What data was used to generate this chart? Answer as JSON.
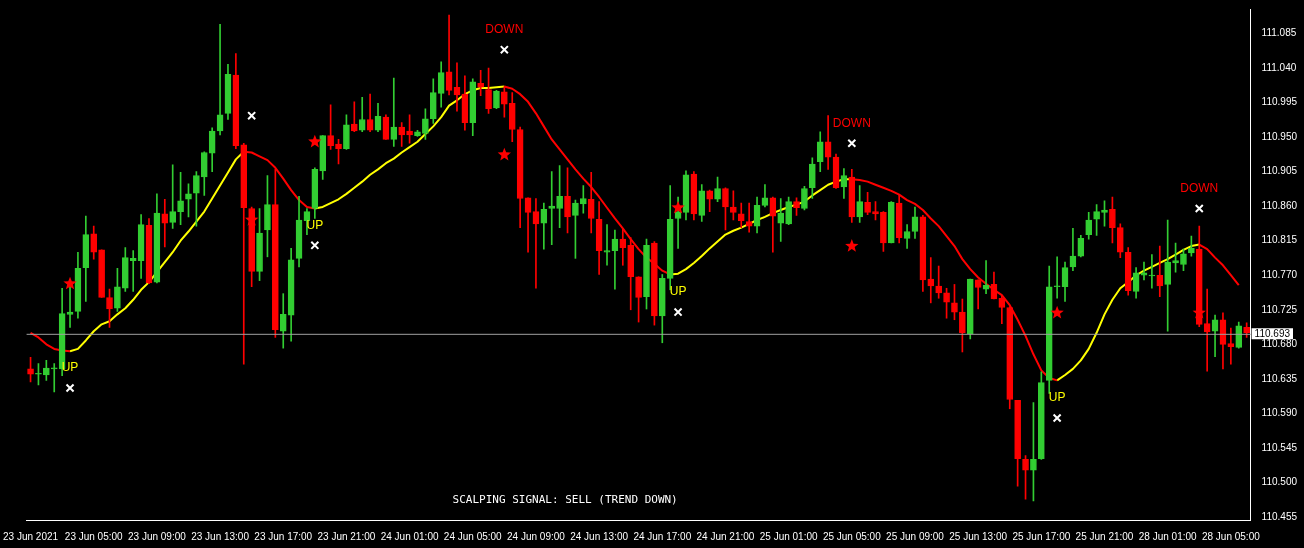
{
  "chart_data": {
    "type": "candlestick",
    "categories": [
      "23 Jun 2021",
      null,
      null,
      null,
      null,
      null,
      null,
      null,
      "23 Jun 05:00",
      null,
      null,
      null,
      null,
      null,
      null,
      null,
      "23 Jun 09:00",
      null,
      null,
      null,
      null,
      null,
      null,
      null,
      "23 Jun 13:00",
      null,
      null,
      null,
      null,
      null,
      null,
      null,
      "23 Jun 17:00",
      null,
      null,
      null,
      null,
      null,
      null,
      null,
      "23 Jun 21:00",
      null,
      null,
      null,
      null,
      null,
      null,
      null,
      "24 Jun 01:00",
      null,
      null,
      null,
      null,
      null,
      null,
      null,
      "24 Jun 05:00",
      null,
      null,
      null,
      null,
      null,
      null,
      null,
      "24 Jun 09:00",
      null,
      null,
      null,
      null,
      null,
      null,
      null,
      "24 Jun 13:00",
      null,
      null,
      null,
      null,
      null,
      null,
      null,
      "24 Jun 17:00",
      null,
      null,
      null,
      null,
      null,
      null,
      null,
      "24 Jun 21:00",
      null,
      null,
      null,
      null,
      null,
      null,
      null,
      "25 Jun 01:00",
      null,
      null,
      null,
      null,
      null,
      null,
      null,
      "25 Jun 05:00",
      null,
      null,
      null,
      null,
      null,
      null,
      null,
      "25 Jun 09:00",
      null,
      null,
      null,
      null,
      null,
      null,
      null,
      "25 Jun 13:00",
      null,
      null,
      null,
      null,
      null,
      null,
      null,
      "25 Jun 17:00",
      null,
      null,
      null,
      null,
      null,
      null,
      null,
      "25 Jun 21:00",
      null,
      null,
      null,
      null,
      null,
      null,
      null,
      "28 Jun 01:00",
      null,
      null,
      null,
      null,
      null,
      null,
      null,
      "28 Jun 05:00",
      null,
      null
    ],
    "ohlc": [
      [
        110.648,
        110.663,
        110.631,
        110.641
      ],
      [
        110.641,
        110.655,
        110.627,
        110.642
      ],
      [
        110.64,
        110.659,
        110.633,
        110.649
      ],
      [
        110.648,
        110.655,
        110.618,
        110.649
      ],
      [
        110.648,
        110.753,
        110.639,
        110.72
      ],
      [
        110.719,
        110.755,
        110.702,
        110.722
      ],
      [
        110.723,
        110.8,
        110.714,
        110.779
      ],
      [
        110.78,
        110.847,
        110.736,
        110.823
      ],
      [
        110.824,
        110.834,
        110.791,
        110.8
      ],
      [
        110.803,
        110.803,
        110.741,
        110.741
      ],
      [
        110.741,
        110.752,
        110.702,
        110.726
      ],
      [
        110.727,
        110.779,
        110.723,
        110.755
      ],
      [
        110.753,
        110.806,
        110.749,
        110.793
      ],
      [
        110.789,
        110.802,
        110.749,
        110.792
      ],
      [
        110.789,
        110.849,
        110.766,
        110.836
      ],
      [
        110.835,
        110.844,
        110.759,
        110.76
      ],
      [
        110.761,
        110.876,
        110.76,
        110.851
      ],
      [
        110.85,
        110.869,
        110.807,
        110.838
      ],
      [
        110.839,
        110.914,
        110.831,
        110.853
      ],
      [
        110.853,
        110.904,
        110.836,
        110.867
      ],
      [
        110.869,
        110.889,
        110.846,
        110.876
      ],
      [
        110.877,
        110.905,
        110.834,
        110.9
      ],
      [
        110.898,
        110.931,
        110.874,
        110.93
      ],
      [
        110.929,
        110.962,
        110.905,
        110.958
      ],
      [
        110.958,
        111.097,
        110.953,
        110.979
      ],
      [
        110.981,
        111.045,
        110.973,
        111.032
      ],
      [
        111.031,
        111.059,
        110.935,
        110.939
      ],
      [
        110.94,
        110.942,
        110.654,
        110.858
      ],
      [
        110.857,
        110.859,
        110.755,
        110.775
      ],
      [
        110.775,
        110.857,
        110.763,
        110.825
      ],
      [
        110.829,
        110.9,
        110.794,
        110.862
      ],
      [
        110.862,
        110.908,
        110.689,
        110.699
      ],
      [
        110.697,
        110.746,
        110.675,
        110.719
      ],
      [
        110.718,
        110.805,
        110.684,
        110.79
      ],
      [
        110.792,
        110.873,
        110.781,
        110.842
      ],
      [
        110.841,
        110.857,
        110.823,
        110.853
      ],
      [
        110.857,
        110.91,
        110.844,
        110.908
      ],
      [
        110.906,
        110.952,
        110.895,
        110.952
      ],
      [
        110.952,
        110.992,
        110.934,
        110.939
      ],
      [
        110.941,
        110.947,
        110.915,
        110.935
      ],
      [
        110.935,
        110.979,
        110.934,
        110.966
      ],
      [
        110.967,
        110.996,
        110.957,
        110.958
      ],
      [
        110.959,
        111.002,
        110.957,
        110.973
      ],
      [
        110.973,
        111.006,
        110.957,
        110.959
      ],
      [
        110.959,
        110.994,
        110.957,
        110.977
      ],
      [
        110.976,
        110.979,
        110.947,
        110.947
      ],
      [
        110.947,
        111.027,
        110.938,
        110.963
      ],
      [
        110.963,
        110.969,
        110.938,
        110.953
      ],
      [
        110.958,
        110.979,
        110.942,
        110.953
      ],
      [
        110.952,
        110.959,
        110.951,
        110.957
      ],
      [
        110.955,
        110.987,
        110.947,
        110.974
      ],
      [
        110.974,
        111.026,
        110.968,
        111.008
      ],
      [
        111.007,
        111.048,
        110.989,
        111.034
      ],
      [
        111.035,
        111.109,
        111.005,
        111.011
      ],
      [
        111.015,
        111.047,
        110.984,
        111.005
      ],
      [
        111.006,
        111.03,
        110.959,
        110.969
      ],
      [
        110.969,
        111.026,
        110.952,
        111.022
      ],
      [
        111.02,
        111.037,
        111.004,
        111.015
      ],
      [
        111.012,
        111.04,
        110.981,
        110.987
      ],
      [
        110.988,
        111.011,
        110.987,
        111.01
      ],
      [
        111.009,
        111.016,
        110.976,
        110.993
      ],
      [
        110.994,
        111.008,
        110.944,
        110.96
      ],
      [
        110.96,
        110.963,
        110.832,
        110.87
      ],
      [
        110.871,
        110.871,
        110.8,
        110.852
      ],
      [
        110.853,
        110.87,
        110.753,
        110.837
      ],
      [
        110.838,
        110.864,
        110.804,
        110.856
      ],
      [
        110.857,
        110.905,
        110.81,
        110.86
      ],
      [
        110.857,
        110.913,
        110.832,
        110.873
      ],
      [
        110.873,
        110.91,
        110.825,
        110.846
      ],
      [
        110.848,
        110.868,
        110.792,
        110.864
      ],
      [
        110.863,
        110.887,
        110.851,
        110.87
      ],
      [
        110.869,
        110.904,
        110.825,
        110.844
      ],
      [
        110.843,
        110.866,
        110.771,
        110.802
      ],
      [
        110.8,
        110.836,
        110.783,
        110.802
      ],
      [
        110.802,
        110.829,
        110.752,
        110.817
      ],
      [
        110.817,
        110.831,
        110.783,
        110.806
      ],
      [
        110.809,
        110.819,
        110.725,
        110.768
      ],
      [
        110.768,
        110.768,
        110.709,
        110.741
      ],
      [
        110.742,
        110.817,
        110.726,
        110.809
      ],
      [
        110.812,
        110.814,
        110.705,
        110.717
      ],
      [
        110.717,
        110.771,
        110.682,
        110.766
      ],
      [
        110.766,
        110.887,
        110.751,
        110.843
      ],
      [
        110.844,
        110.872,
        110.805,
        110.852
      ],
      [
        110.852,
        110.906,
        110.842,
        110.901
      ],
      [
        110.902,
        110.905,
        110.842,
        110.85
      ],
      [
        110.848,
        110.888,
        110.84,
        110.88
      ],
      [
        110.88,
        110.881,
        110.853,
        110.869
      ],
      [
        110.869,
        110.898,
        110.866,
        110.883
      ],
      [
        110.883,
        110.884,
        110.829,
        110.859
      ],
      [
        110.859,
        110.88,
        110.842,
        110.852
      ],
      [
        110.85,
        110.864,
        110.832,
        110.841
      ],
      [
        110.84,
        110.864,
        110.826,
        110.834
      ],
      [
        110.834,
        110.872,
        110.825,
        110.861
      ],
      [
        110.861,
        110.888,
        110.859,
        110.871
      ],
      [
        110.871,
        110.872,
        110.8,
        110.847
      ],
      [
        110.838,
        110.87,
        110.814,
        110.851
      ],
      [
        110.837,
        110.872,
        110.836,
        110.866
      ],
      [
        110.866,
        110.871,
        110.848,
        110.858
      ],
      [
        110.857,
        110.886,
        110.855,
        110.883
      ],
      [
        110.884,
        110.923,
        110.87,
        110.915
      ],
      [
        110.918,
        110.957,
        110.905,
        110.944
      ],
      [
        110.944,
        110.978,
        110.908,
        110.924
      ],
      [
        110.924,
        110.928,
        110.883,
        110.884
      ],
      [
        110.885,
        110.909,
        110.87,
        110.9
      ],
      [
        110.898,
        110.908,
        110.839,
        110.846
      ],
      [
        110.846,
        110.887,
        110.839,
        110.866
      ],
      [
        110.865,
        110.878,
        110.849,
        110.852
      ],
      [
        110.853,
        110.866,
        110.842,
        110.85
      ],
      [
        110.852,
        110.853,
        110.801,
        110.812
      ],
      [
        110.812,
        110.866,
        110.812,
        110.865
      ],
      [
        110.864,
        110.875,
        110.812,
        110.819
      ],
      [
        110.818,
        110.836,
        110.805,
        110.827
      ],
      [
        110.827,
        110.859,
        110.818,
        110.846
      ],
      [
        110.846,
        110.848,
        110.749,
        110.764
      ],
      [
        110.765,
        110.793,
        110.734,
        110.756
      ],
      [
        110.756,
        110.782,
        110.74,
        110.747
      ],
      [
        110.747,
        110.753,
        110.714,
        110.735
      ],
      [
        110.734,
        110.758,
        110.712,
        110.722
      ],
      [
        110.722,
        110.739,
        110.67,
        110.695
      ],
      [
        110.694,
        110.765,
        110.687,
        110.765
      ],
      [
        110.764,
        110.764,
        110.726,
        110.754
      ],
      [
        110.752,
        110.789,
        110.746,
        110.757
      ],
      [
        110.758,
        110.774,
        110.739,
        110.739
      ],
      [
        110.74,
        110.743,
        110.707,
        110.728
      ],
      [
        110.728,
        110.729,
        110.596,
        110.608
      ],
      [
        110.607,
        110.607,
        110.495,
        110.531
      ],
      [
        110.53,
        110.535,
        110.478,
        110.516
      ],
      [
        110.516,
        110.604,
        110.476,
        110.53
      ],
      [
        110.531,
        110.644,
        110.53,
        110.63
      ],
      [
        110.633,
        110.782,
        110.616,
        110.755
      ],
      [
        110.755,
        110.794,
        110.74,
        110.756
      ],
      [
        110.755,
        110.787,
        110.736,
        110.78
      ],
      [
        110.781,
        110.831,
        110.776,
        110.795
      ],
      [
        110.795,
        110.822,
        110.794,
        110.818
      ],
      [
        110.823,
        110.852,
        110.817,
        110.842
      ],
      [
        110.843,
        110.862,
        110.822,
        110.853
      ],
      [
        110.852,
        110.867,
        110.834,
        110.855
      ],
      [
        110.856,
        110.872,
        110.812,
        110.832
      ],
      [
        110.832,
        110.837,
        110.793,
        110.8
      ],
      [
        110.8,
        110.806,
        110.744,
        110.75
      ],
      [
        110.749,
        110.78,
        110.74,
        110.773
      ],
      [
        110.77,
        110.787,
        110.764,
        110.773
      ],
      [
        110.769,
        110.797,
        110.753,
        110.77
      ],
      [
        110.77,
        110.808,
        110.742,
        110.756
      ],
      [
        110.758,
        110.842,
        110.697,
        110.787
      ],
      [
        110.786,
        110.812,
        110.774,
        110.789
      ],
      [
        110.784,
        110.804,
        110.776,
        110.798
      ],
      [
        110.799,
        110.821,
        110.795,
        110.805
      ],
      [
        110.804,
        110.834,
        110.703,
        110.706
      ],
      [
        110.707,
        110.752,
        110.645,
        110.696
      ],
      [
        110.697,
        110.718,
        110.664,
        110.712
      ],
      [
        110.712,
        110.721,
        110.648,
        110.68
      ],
      [
        110.681,
        110.701,
        110.654,
        110.677
      ],
      [
        110.676,
        110.709,
        110.675,
        110.704
      ],
      [
        110.702,
        110.708,
        110.689,
        110.695
      ]
    ],
    "colors": [
      "#ff0000",
      "#32cd32",
      "#32cd32",
      "#32cd32",
      "#32cd32",
      "#32cd32",
      "#32cd32",
      "#32cd32",
      "#ff0000",
      "#ff0000",
      "#ff0000",
      "#32cd32",
      "#32cd32",
      "#32cd32",
      "#32cd32",
      "#ff0000",
      "#32cd32",
      "#ff0000",
      "#32cd32",
      "#32cd32",
      "#32cd32",
      "#32cd32",
      "#32cd32",
      "#32cd32",
      "#32cd32",
      "#32cd32",
      "#ff0000",
      "#ff0000",
      "#ff0000",
      "#32cd32",
      "#32cd32",
      "#ff0000",
      "#32cd32",
      "#32cd32",
      "#32cd32",
      "#32cd32",
      "#32cd32",
      "#32cd32",
      "#ff0000",
      "#ff0000",
      "#32cd32",
      "#ff0000",
      "#32cd32",
      "#ff0000",
      "#32cd32",
      "#ff0000",
      "#32cd32",
      "#ff0000",
      "#ff0000",
      "#32cd32",
      "#32cd32",
      "#32cd32",
      "#32cd32",
      "#ff0000",
      "#ff0000",
      "#ff0000",
      "#32cd32",
      "#ff0000",
      "#ff0000",
      "#32cd32",
      "#ff0000",
      "#ff0000",
      "#ff0000",
      "#ff0000",
      "#ff0000",
      "#32cd32",
      "#32cd32",
      "#32cd32",
      "#ff0000",
      "#32cd32",
      "#32cd32",
      "#ff0000",
      "#ff0000",
      "#32cd32",
      "#32cd32",
      "#ff0000",
      "#ff0000",
      "#ff0000",
      "#32cd32",
      "#ff0000",
      "#32cd32",
      "#32cd32",
      "#32cd32",
      "#32cd32",
      "#ff0000",
      "#32cd32",
      "#ff0000",
      "#32cd32",
      "#ff0000",
      "#ff0000",
      "#ff0000",
      "#ff0000",
      "#32cd32",
      "#32cd32",
      "#ff0000",
      "#32cd32",
      "#32cd32",
      "#ff0000",
      "#32cd32",
      "#32cd32",
      "#32cd32",
      "#ff0000",
      "#ff0000",
      "#32cd32",
      "#ff0000",
      "#32cd32",
      "#ff0000",
      "#ff0000",
      "#ff0000",
      "#32cd32",
      "#ff0000",
      "#32cd32",
      "#32cd32",
      "#ff0000",
      "#ff0000",
      "#ff0000",
      "#ff0000",
      "#ff0000",
      "#ff0000",
      "#32cd32",
      "#ff0000",
      "#32cd32",
      "#ff0000",
      "#ff0000",
      "#ff0000",
      "#ff0000",
      "#ff0000",
      "#32cd32",
      "#32cd32",
      "#32cd32",
      "#32cd32",
      "#32cd32",
      "#32cd32",
      "#32cd32",
      "#32cd32",
      "#32cd32",
      "#32cd32",
      "#ff0000",
      "#ff0000",
      "#ff0000",
      "#32cd32",
      "#32cd32",
      "#32cd32",
      "#ff0000",
      "#32cd32",
      "#32cd32",
      "#32cd32",
      "#32cd32",
      "#ff0000",
      "#ff0000",
      "#32cd32",
      "#ff0000",
      "#ff0000",
      "#32cd32",
      "#ff0000"
    ],
    "series": [
      {
        "type": "line",
        "color": "#ff0000",
        "values": [
          110.695,
          110.689,
          110.68,
          110.674,
          110.672,
          110.671,
          null,
          null,
          null,
          null,
          null,
          null,
          null,
          null,
          null,
          null,
          null,
          null,
          null,
          null,
          null,
          null,
          null,
          null,
          null,
          null,
          null,
          110.931,
          110.93,
          110.925,
          110.92,
          110.91,
          110.896,
          110.881,
          110.868,
          110.859,
          110.857,
          null,
          null,
          null,
          null,
          null,
          null,
          null,
          null,
          null,
          null,
          null,
          null,
          null,
          null,
          null,
          null,
          null,
          null,
          null,
          null,
          null,
          null,
          null,
          111.016,
          111.013,
          111.006,
          110.996,
          110.981,
          110.964,
          110.947,
          110.934,
          110.921,
          110.908,
          110.896,
          110.885,
          110.872,
          110.858,
          110.844,
          110.831,
          110.817,
          110.804,
          110.793,
          110.785,
          110.776,
          110.771,
          null,
          null,
          null,
          null,
          null,
          null,
          null,
          null,
          null,
          null,
          null,
          null,
          null,
          null,
          null,
          null,
          null,
          null,
          null,
          null,
          null,
          null,
          110.895,
          110.894,
          110.892,
          110.888,
          110.884,
          110.88,
          110.875,
          110.868,
          110.863,
          110.855,
          110.844,
          110.834,
          110.821,
          110.808,
          110.791,
          110.778,
          110.767,
          110.759,
          110.751,
          110.744,
          110.731,
          110.712,
          110.691,
          110.667,
          110.646,
          110.636,
          110.633,
          null,
          null,
          null,
          null,
          null,
          null,
          null,
          null,
          null,
          null,
          null,
          null,
          null,
          null,
          null,
          null,
          null,
          110.81,
          110.804,
          110.793,
          110.783,
          110.77,
          110.757,
          null
        ]
      },
      {
        "type": "line",
        "color": "#ffff00",
        "values": [
          null,
          null,
          null,
          null,
          null,
          110.671,
          110.674,
          110.685,
          110.697,
          110.706,
          110.71,
          110.719,
          110.727,
          110.738,
          110.751,
          110.761,
          110.774,
          110.787,
          110.8,
          110.815,
          110.827,
          110.84,
          110.853,
          110.87,
          110.887,
          110.904,
          110.921,
          110.931,
          null,
          null,
          null,
          null,
          null,
          null,
          null,
          null,
          110.857,
          110.859,
          110.864,
          110.869,
          110.876,
          110.884,
          110.892,
          110.901,
          110.908,
          110.916,
          110.922,
          110.93,
          110.937,
          110.944,
          110.954,
          110.964,
          110.976,
          110.991,
          110.998,
          111.006,
          111.011,
          111.014,
          111.014,
          111.015,
          111.016,
          null,
          null,
          null,
          null,
          null,
          null,
          null,
          null,
          null,
          null,
          null,
          null,
          null,
          null,
          null,
          null,
          null,
          null,
          null,
          null,
          110.771,
          110.772,
          110.778,
          110.786,
          110.795,
          110.805,
          110.814,
          110.823,
          110.828,
          110.832,
          110.837,
          110.842,
          110.846,
          110.851,
          110.855,
          110.859,
          110.862,
          110.866,
          110.874,
          110.881,
          110.888,
          110.892,
          110.895,
          110.895,
          null,
          null,
          null,
          null,
          null,
          null,
          null,
          null,
          null,
          null,
          null,
          null,
          null,
          null,
          null,
          null,
          null,
          null,
          null,
          null,
          null,
          null,
          null,
          null,
          null,
          110.633,
          110.64,
          110.648,
          110.659,
          110.674,
          110.695,
          110.719,
          110.738,
          110.753,
          110.761,
          110.77,
          110.776,
          110.781,
          110.786,
          110.791,
          110.797,
          110.803,
          110.808,
          110.81,
          null,
          null,
          null,
          null,
          null,
          null
        ]
      },
      {
        "type": "scatter",
        "marker": "star",
        "color": "#ff0000",
        "values": [
          null,
          null,
          null,
          null,
          null,
          110.759,
          null,
          null,
          null,
          null,
          null,
          null,
          null,
          null,
          null,
          null,
          null,
          null,
          null,
          null,
          null,
          null,
          null,
          null,
          null,
          null,
          null,
          null,
          110.842,
          null,
          null,
          null,
          null,
          null,
          null,
          null,
          110.944,
          null,
          null,
          null,
          null,
          null,
          null,
          null,
          null,
          null,
          null,
          null,
          null,
          null,
          null,
          null,
          null,
          null,
          null,
          null,
          null,
          null,
          null,
          null,
          110.927,
          null,
          null,
          null,
          null,
          null,
          null,
          null,
          null,
          null,
          null,
          null,
          null,
          null,
          null,
          null,
          null,
          null,
          null,
          null,
          null,
          null,
          110.858,
          null,
          null,
          null,
          null,
          null,
          null,
          null,
          null,
          null,
          null,
          null,
          null,
          null,
          null,
          null,
          null,
          null,
          null,
          null,
          null,
          null,
          110.808,
          null,
          null,
          null,
          null,
          null,
          null,
          null,
          null,
          null,
          null,
          null,
          null,
          null,
          null,
          null,
          null,
          null,
          null,
          null,
          null,
          null,
          null,
          null,
          null,
          null,
          110.721,
          null,
          null,
          null,
          null,
          null,
          null,
          null,
          null,
          null,
          null,
          null,
          null,
          null,
          null,
          null,
          null,
          null,
          110.721,
          null,
          null,
          null,
          null,
          null,
          null
        ]
      },
      {
        "type": "scatter",
        "marker": "cross",
        "color": "#ffffff",
        "values": [
          null,
          null,
          null,
          null,
          null,
          110.623,
          null,
          null,
          null,
          null,
          null,
          null,
          null,
          null,
          null,
          null,
          null,
          null,
          null,
          null,
          null,
          null,
          null,
          null,
          null,
          null,
          null,
          null,
          110.978,
          null,
          null,
          null,
          null,
          null,
          null,
          null,
          110.809,
          null,
          null,
          null,
          null,
          null,
          null,
          null,
          null,
          null,
          null,
          null,
          null,
          null,
          null,
          null,
          null,
          null,
          null,
          null,
          null,
          null,
          null,
          null,
          111.064,
          null,
          null,
          null,
          null,
          null,
          null,
          null,
          null,
          null,
          null,
          null,
          null,
          null,
          null,
          null,
          null,
          null,
          null,
          null,
          null,
          null,
          110.722,
          null,
          null,
          null,
          null,
          null,
          null,
          null,
          null,
          null,
          null,
          null,
          null,
          null,
          null,
          null,
          null,
          null,
          null,
          null,
          null,
          null,
          110.942,
          null,
          null,
          null,
          null,
          null,
          null,
          null,
          null,
          null,
          null,
          null,
          null,
          null,
          null,
          null,
          null,
          null,
          null,
          null,
          null,
          null,
          null,
          null,
          null,
          null,
          110.584,
          null,
          null,
          null,
          null,
          null,
          null,
          null,
          null,
          null,
          null,
          null,
          null,
          null,
          null,
          null,
          null,
          null,
          110.857,
          null,
          null,
          null,
          null,
          null,
          null
        ],
        "value_labels": [
          null,
          null,
          null,
          null,
          null,
          "UP",
          null,
          null,
          null,
          null,
          null,
          null,
          null,
          null,
          null,
          null,
          null,
          null,
          null,
          null,
          null,
          null,
          null,
          null,
          null,
          null,
          null,
          null,
          null,
          null,
          null,
          null,
          null,
          null,
          null,
          null,
          "UP",
          null,
          null,
          null,
          null,
          null,
          null,
          null,
          null,
          null,
          null,
          null,
          null,
          null,
          null,
          null,
          null,
          null,
          null,
          null,
          null,
          null,
          null,
          null,
          "DOWN",
          null,
          null,
          null,
          null,
          null,
          null,
          null,
          null,
          null,
          null,
          null,
          null,
          null,
          null,
          null,
          null,
          null,
          null,
          null,
          null,
          null,
          "UP",
          null,
          null,
          null,
          null,
          null,
          null,
          null,
          null,
          null,
          null,
          null,
          null,
          null,
          null,
          null,
          null,
          null,
          null,
          null,
          null,
          null,
          "DOWN",
          null,
          null,
          null,
          null,
          null,
          null,
          null,
          null,
          null,
          null,
          null,
          null,
          null,
          null,
          null,
          null,
          null,
          null,
          null,
          null,
          null,
          null,
          null,
          null,
          null,
          "UP",
          null,
          null,
          null,
          null,
          null,
          null,
          null,
          null,
          null,
          null,
          null,
          null,
          null,
          null,
          null,
          null,
          null,
          "DOWN",
          null,
          null,
          null,
          null,
          null,
          null
        ]
      }
    ],
    "ylim": [
      110.451,
      111.117
    ],
    "yticks": [
      110.455,
      {
        "value": 110.5,
        "label": "110.500"
      },
      110.545,
      {
        "value": 110.59,
        "label": "110.590"
      },
      110.635,
      {
        "value": 110.68,
        "label": "110.680"
      },
      110.725,
      {
        "value": 110.77,
        "label": "110.770"
      },
      110.815,
      {
        "value": 110.86,
        "label": "110.860"
      },
      110.905,
      {
        "value": 110.95,
        "label": "110.950"
      },
      110.995,
      {
        "value": 111.04,
        "label": "111.040"
      },
      111.085
    ],
    "ref_lines": [
      {
        "axis": "y",
        "value": 110.693,
        "label": "110.693",
        "color": "#a0a0a0"
      }
    ],
    "annotations": [
      "SCALPING SIGNAL: SELL (TREND DOWN)"
    ],
    "grid": false,
    "legend": false
  }
}
